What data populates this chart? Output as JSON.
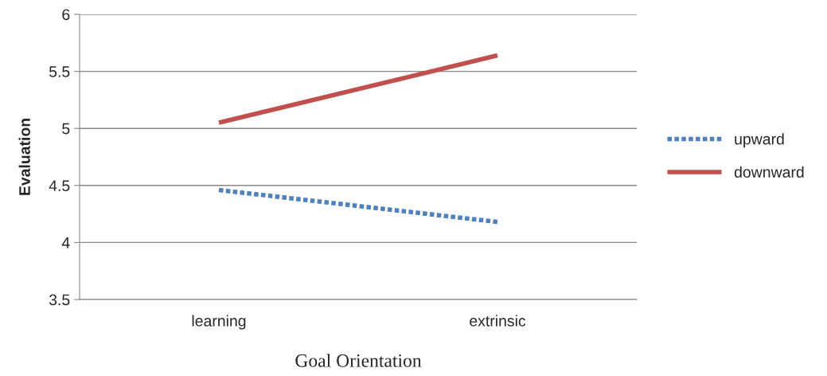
{
  "chart_data": {
    "type": "line",
    "xlabel": "Goal Orientation",
    "ylabel": "Evaluation",
    "categories": [
      "learning",
      "extrinsic"
    ],
    "series": [
      {
        "name": "upward",
        "color": "#4f81bd",
        "values": [
          4.46,
          4.18
        ],
        "line_style": "dotted"
      },
      {
        "name": "downward",
        "color": "#c0504d",
        "values": [
          5.05,
          5.64
        ],
        "line_style": "solid"
      }
    ],
    "ylim": [
      3.5,
      6
    ],
    "yticks": [
      3.5,
      4,
      4.5,
      5,
      5.5,
      6
    ],
    "grid": "y",
    "legend": "right",
    "marker": "none"
  }
}
